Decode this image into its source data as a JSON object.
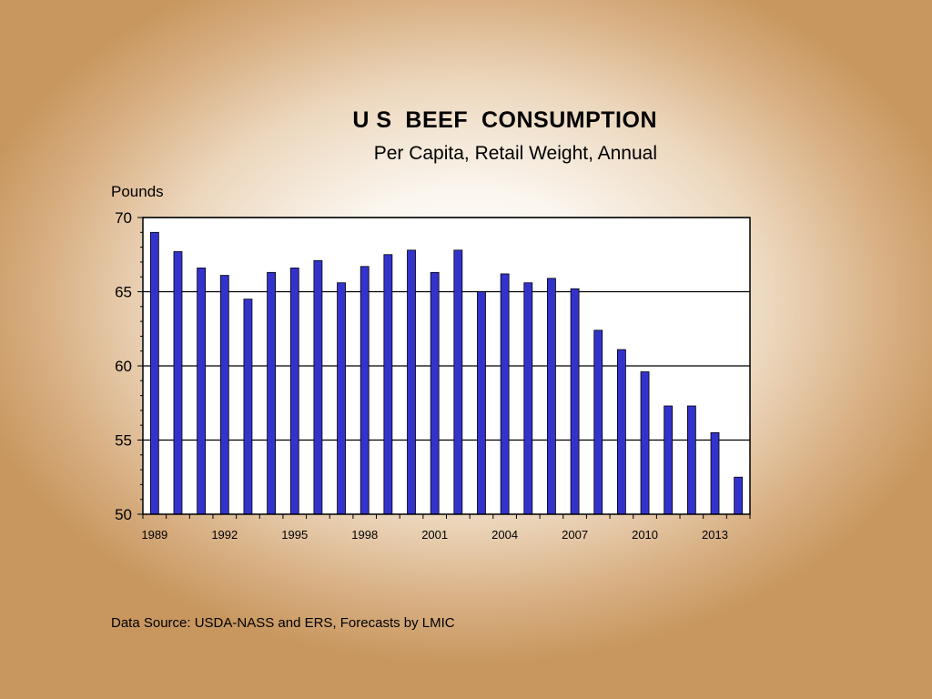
{
  "slide": {
    "title": "U S  BEEF  CONSUMPTION",
    "subtitle": "Per Capita, Retail Weight, Annual",
    "source": "Data Source: USDA-NASS and ERS, Forecasts by LMIC"
  },
  "colors": {
    "bar": "#3333cc",
    "background": "#c8975f"
  },
  "chart_data": {
    "type": "bar",
    "title": "U S  BEEF  CONSUMPTION",
    "subtitle": "Per Capita, Retail Weight, Annual",
    "ylabel": "Pounds",
    "xlabel": "",
    "ylim": [
      50,
      70
    ],
    "yticks": [
      50,
      55,
      60,
      65,
      70
    ],
    "grid": true,
    "legend": "none",
    "categories": [
      1989,
      1990,
      1991,
      1992,
      1993,
      1994,
      1995,
      1996,
      1997,
      1998,
      1999,
      2000,
      2001,
      2002,
      2003,
      2004,
      2005,
      2006,
      2007,
      2008,
      2009,
      2010,
      2011,
      2012,
      2013,
      2014
    ],
    "xtick_labels": [
      "1989",
      "1992",
      "1995",
      "1998",
      "2001",
      "2004",
      "2007",
      "2010",
      "2013"
    ],
    "values": [
      69.0,
      67.7,
      66.6,
      66.1,
      64.5,
      66.3,
      66.6,
      67.1,
      65.6,
      66.7,
      67.5,
      67.8,
      66.3,
      67.8,
      65.0,
      66.2,
      65.6,
      65.9,
      65.2,
      62.4,
      61.1,
      59.6,
      57.3,
      57.3,
      55.5,
      52.5
    ]
  }
}
